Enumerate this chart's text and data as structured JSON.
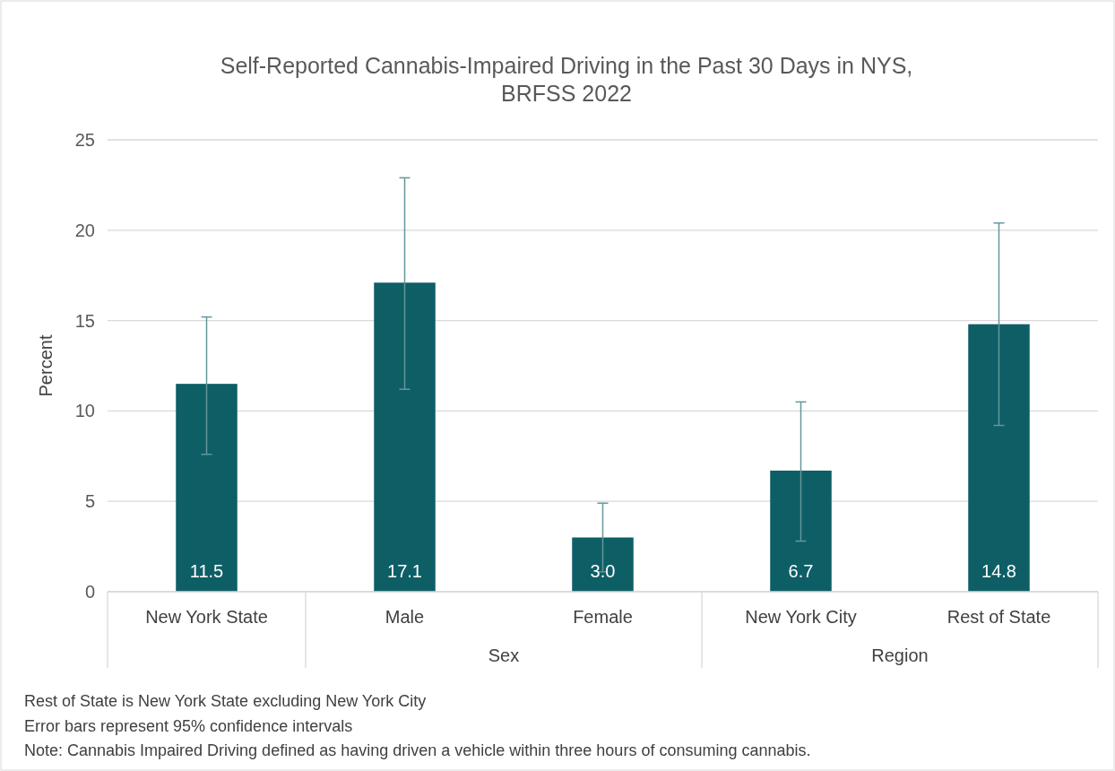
{
  "chart_data": {
    "type": "bar",
    "title": "Self-Reported Cannabis-Impaired Driving in the Past 30 Days in NYS,\nBRFSS 2022",
    "ylabel": "Percent",
    "categories": [
      "New York State",
      "Male",
      "Female",
      "New York City",
      "Rest of State"
    ],
    "values": [
      11.5,
      17.1,
      3.0,
      6.7,
      14.8
    ],
    "errors": [
      [
        7.6,
        15.2
      ],
      [
        11.2,
        22.9
      ],
      [
        1.1,
        4.9
      ],
      [
        2.8,
        10.5
      ],
      [
        9.2,
        20.4
      ]
    ],
    "color": "#0e5e66",
    "value_labels": [
      "11.5",
      "17.1",
      "3.0",
      "6.7",
      "14.8"
    ],
    "ylim": [
      0,
      25
    ],
    "yticks": [
      0,
      5,
      10,
      15,
      20,
      25
    ],
    "grid": "y",
    "annotations": [
      "Sex",
      "Region",
      "Rest of State is New York State excluding New York City",
      "Error bars represent 95% confidence intervals",
      "Note: Cannabis Impaired Driving defined as having driven a vehicle within three hours of consuming cannabis."
    ]
  }
}
